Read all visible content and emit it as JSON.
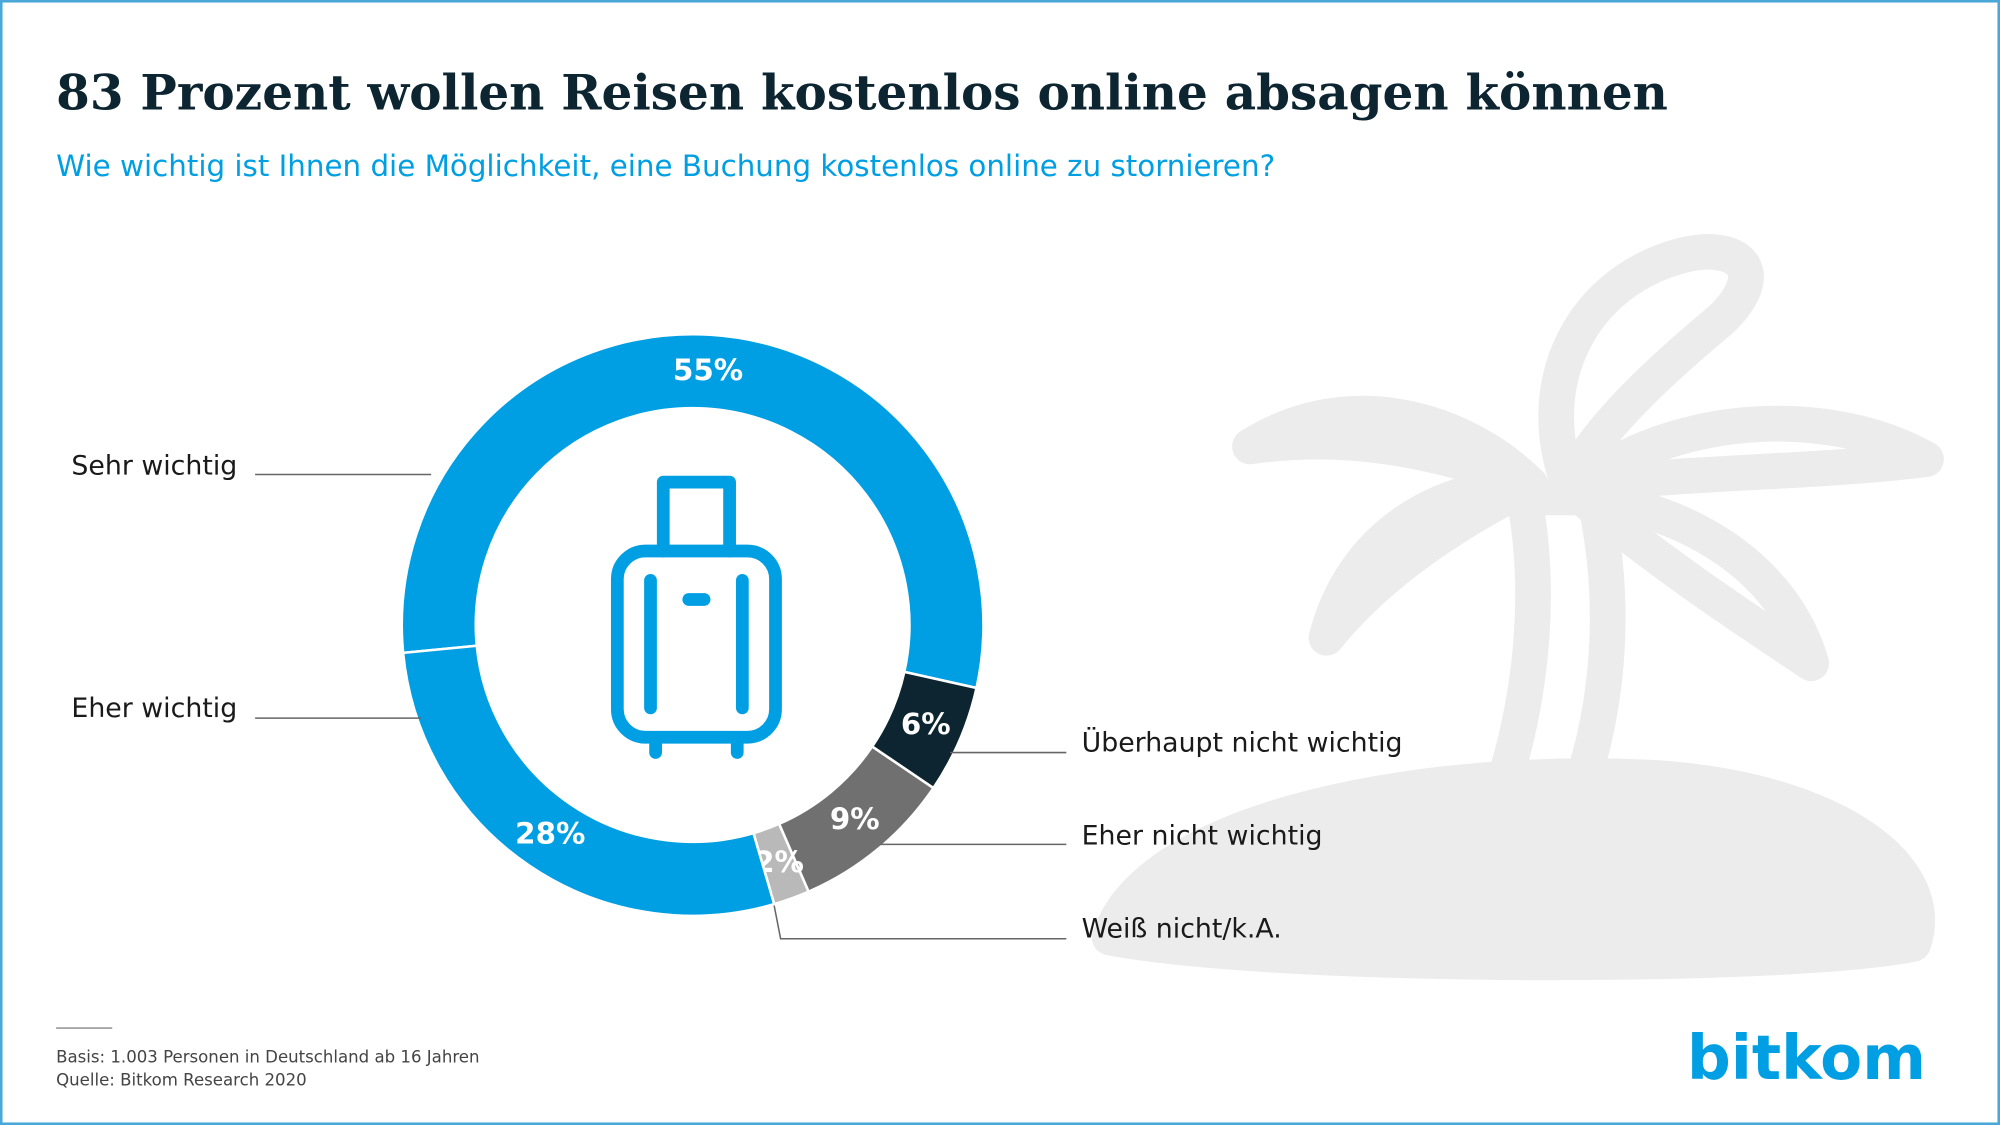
{
  "chart_data": {
    "type": "donut",
    "title": "83 Prozent wollen Reisen kostenlos online absagen können",
    "subtitle": "Wie wichtig ist Ihnen die Möglichkeit, eine Buchung kostenlos online zu stornieren?",
    "categories": [
      "Sehr wichtig",
      "Überhaupt nicht wichtig",
      "Eher nicht wichtig",
      "Weiß nicht/k.A.",
      "Eher wichtig"
    ],
    "values": [
      55,
      6,
      9,
      2,
      28
    ],
    "value_labels": [
      "55%",
      "6%",
      "9%",
      "2%",
      "28%"
    ],
    "colors": [
      "#009fe3",
      "#0c2530",
      "#707070",
      "#b9b9b9",
      "#009fe3"
    ]
  },
  "footer": {
    "basis": "Basis: 1.003 Personen in Deutschland ab 16 Jahren",
    "source": "Quelle: Bitkom Research 2020"
  },
  "logo": "bitkom"
}
